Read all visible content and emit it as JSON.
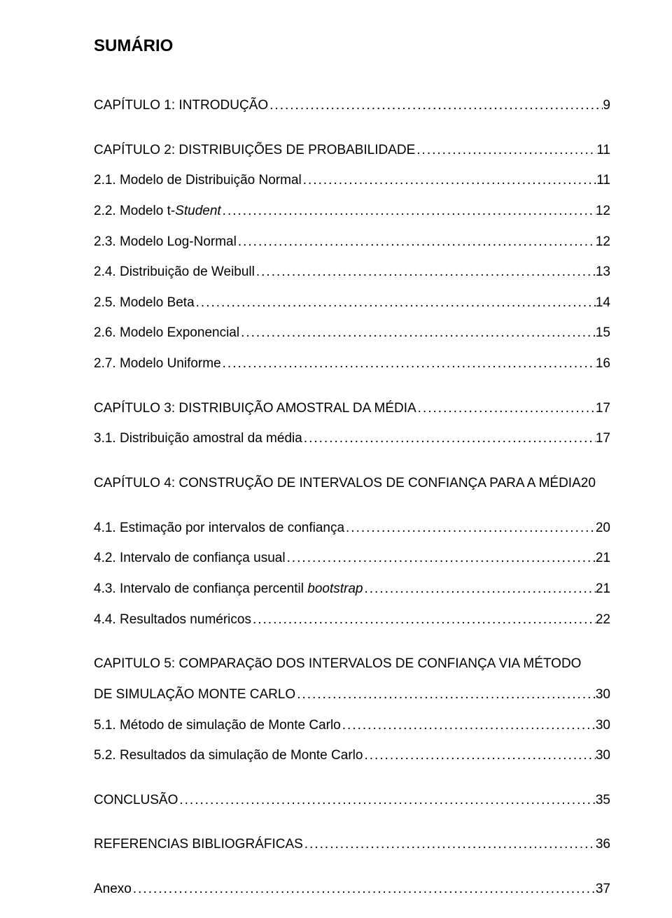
{
  "title": "SUMÁRIO",
  "entries": [
    {
      "type": "line",
      "label_parts": [
        {
          "text": "CAPÍTULO 1: INTRODUÇÃO"
        }
      ],
      "page": "9",
      "spaced": true
    },
    {
      "type": "line",
      "label_parts": [
        {
          "text": "CAPÍTULO 2: DISTRIBUIÇÕES DE PROBABILIDADE"
        }
      ],
      "page": "11",
      "spaced": false
    },
    {
      "type": "line",
      "label_parts": [
        {
          "text": "2.1. Modelo de Distribuição Normal"
        }
      ],
      "page": "11",
      "spaced": false
    },
    {
      "type": "line",
      "label_parts": [
        {
          "text": "2.2. Modelo t-"
        },
        {
          "text": "Student",
          "italic": true
        }
      ],
      "page": "12",
      "spaced": false
    },
    {
      "type": "line",
      "label_parts": [
        {
          "text": "2.3. Modelo Log-Normal"
        }
      ],
      "page": "12",
      "spaced": false
    },
    {
      "type": "line",
      "label_parts": [
        {
          "text": "2.4. Distribuição de Weibull"
        }
      ],
      "page": "13",
      "spaced": false
    },
    {
      "type": "line",
      "label_parts": [
        {
          "text": "2.5. Modelo Beta"
        }
      ],
      "page": "14",
      "spaced": false
    },
    {
      "type": "line",
      "label_parts": [
        {
          "text": "2.6. Modelo Exponencial"
        }
      ],
      "page": "15",
      "spaced": false
    },
    {
      "type": "line",
      "label_parts": [
        {
          "text": "2.7. Modelo Uniforme"
        }
      ],
      "page": "16",
      "spaced": true
    },
    {
      "type": "line",
      "label_parts": [
        {
          "text": "CAPÍTULO 3: DISTRIBUIÇÃO AMOSTRAL DA MÉDIA"
        }
      ],
      "page": "17",
      "spaced": false
    },
    {
      "type": "line",
      "label_parts": [
        {
          "text": "3.1. Distribuição amostral da média"
        }
      ],
      "page": "17",
      "spaced": true
    },
    {
      "type": "inline",
      "text": "CAPÍTULO 4: CONSTRUÇÃO DE INTERVALOS DE CONFIANÇA PARA A MÉDIA20",
      "spaced": true
    },
    {
      "type": "line",
      "label_parts": [
        {
          "text": "4.1. Estimação por intervalos de confiança"
        }
      ],
      "page": "20",
      "spaced": false
    },
    {
      "type": "line",
      "label_parts": [
        {
          "text": "4.2. Intervalo de confiança usual"
        }
      ],
      "page": "21",
      "spaced": false
    },
    {
      "type": "line",
      "label_parts": [
        {
          "text": "4.3. Intervalo de confiança percentil "
        },
        {
          "text": "bootstrap",
          "italic": true
        }
      ],
      "page": "21",
      "spaced": false
    },
    {
      "type": "line",
      "label_parts": [
        {
          "text": "4.4. Resultados numéricos"
        }
      ],
      "page": "22",
      "spaced": true
    },
    {
      "type": "multiline",
      "first": "CAPITULO 5: COMPARAÇãO DOS INTERVALOS DE CONFIANÇA VIA MÉTODO",
      "second_label": "DE SIMULAÇÃO MONTE CARLO",
      "page": "30",
      "spaced": false
    },
    {
      "type": "line",
      "label_parts": [
        {
          "text": "5.1. Método de simulação de Monte Carlo"
        }
      ],
      "page": "30",
      "spaced": false
    },
    {
      "type": "line",
      "label_parts": [
        {
          "text": "5.2. Resultados da simulação de Monte Carlo"
        }
      ],
      "page": "30",
      "spaced": true
    },
    {
      "type": "line",
      "label_parts": [
        {
          "text": "CONCLUSÃO"
        }
      ],
      "page": "35",
      "spaced": true
    },
    {
      "type": "line",
      "label_parts": [
        {
          "text": "REFERENCIAS BIBLIOGRÁFICAS"
        }
      ],
      "page": "36",
      "spaced": true
    },
    {
      "type": "line",
      "label_parts": [
        {
          "text": "Anexo"
        }
      ],
      "page": "37",
      "spaced": false
    }
  ],
  "dots": "........................................................................................................................................................",
  "colors": {
    "background": "#ffffff",
    "text": "#000000"
  },
  "typography": {
    "title_fontsize": 24,
    "body_fontsize": 19,
    "font_family": "Arial"
  }
}
